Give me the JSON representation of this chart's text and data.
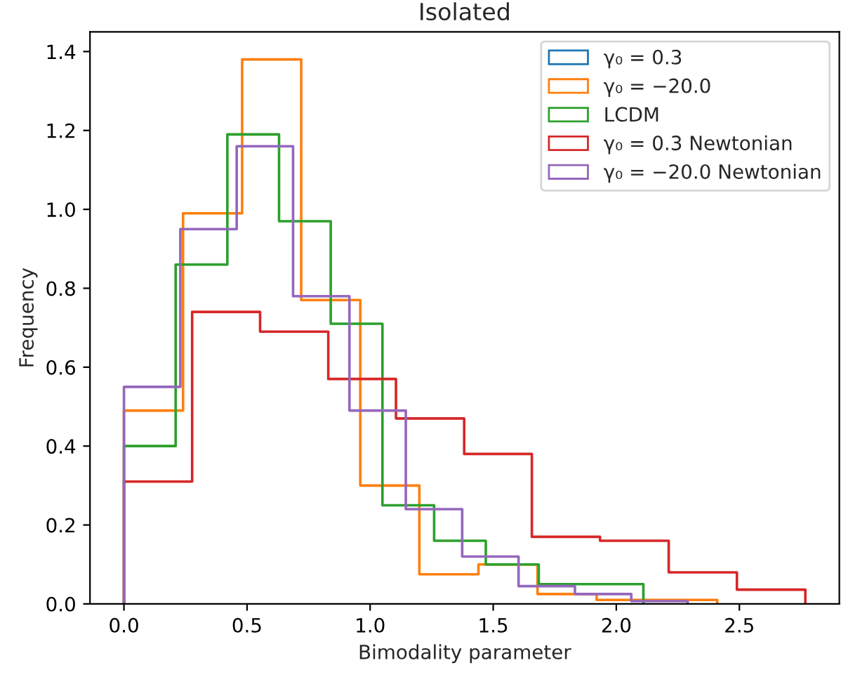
{
  "chart_data": {
    "type": "step",
    "title": "Isolated",
    "xlabel": "Bimodality parameter",
    "ylabel": "Frequency",
    "xlim": [
      -0.138,
      2.906
    ],
    "xticks": [
      {
        "value": 0,
        "label": "0.0"
      },
      0.5,
      {
        "value": 1,
        "label": "1.0"
      },
      1.5,
      {
        "value": 2,
        "label": "2.0"
      },
      2.5
    ],
    "ylim": [
      0,
      1.45
    ],
    "yticks": [
      {
        "value": 0,
        "label": "0.0"
      },
      0.2,
      0.4,
      0.6,
      0.8,
      {
        "value": 1,
        "label": "1.0"
      },
      1.2,
      1.4
    ],
    "grid": false,
    "legend": "top right",
    "series": [
      {
        "name": "γ₀ = 0.3",
        "color": "#1f77b4"
      },
      {
        "name": "γ₀ = −20.0",
        "color": "#ff7f0e",
        "x": [
          0,
          0,
          0.24,
          0.48,
          0.72,
          0.96,
          1.2,
          1.44,
          1.68,
          1.92,
          2.16,
          2.41
        ],
        "values": [
          0,
          0.49,
          0.99,
          1.38,
          0.77,
          0.3,
          0.075,
          0.1,
          0.025,
          0.01,
          0.01,
          0
        ]
      },
      {
        "name": "LCDM",
        "color": "#2ca02c",
        "x": [
          0,
          0,
          0.21,
          0.42,
          0.63,
          0.84,
          1.05,
          1.26,
          1.47,
          1.685,
          1.9,
          2.11
        ],
        "values": [
          0,
          0.4,
          0.86,
          1.19,
          0.97,
          0.71,
          0.25,
          0.16,
          0.1,
          0.05,
          0.05,
          0
        ]
      },
      {
        "name": "γ₀ = 0.3 Newtonian",
        "color": "#d62728",
        "x": [
          0,
          0,
          0.277,
          0.553,
          0.83,
          1.105,
          1.382,
          1.657,
          1.934,
          2.213,
          2.49,
          2.768
        ],
        "values": [
          0,
          0.31,
          0.74,
          0.69,
          0.57,
          0.47,
          0.38,
          0.17,
          0.16,
          0.08,
          0.036,
          0
        ]
      },
      {
        "name": "γ₀ = −20.0 Newtonian",
        "color": "#9467bd",
        "x": [
          0,
          0,
          0.229,
          0.458,
          0.687,
          0.916,
          1.145,
          1.374,
          1.603,
          1.832,
          2.061,
          2.29
        ],
        "values": [
          0,
          0.55,
          0.95,
          1.16,
          0.78,
          0.49,
          0.24,
          0.12,
          0.045,
          0.025,
          0.007,
          0
        ]
      }
    ]
  }
}
